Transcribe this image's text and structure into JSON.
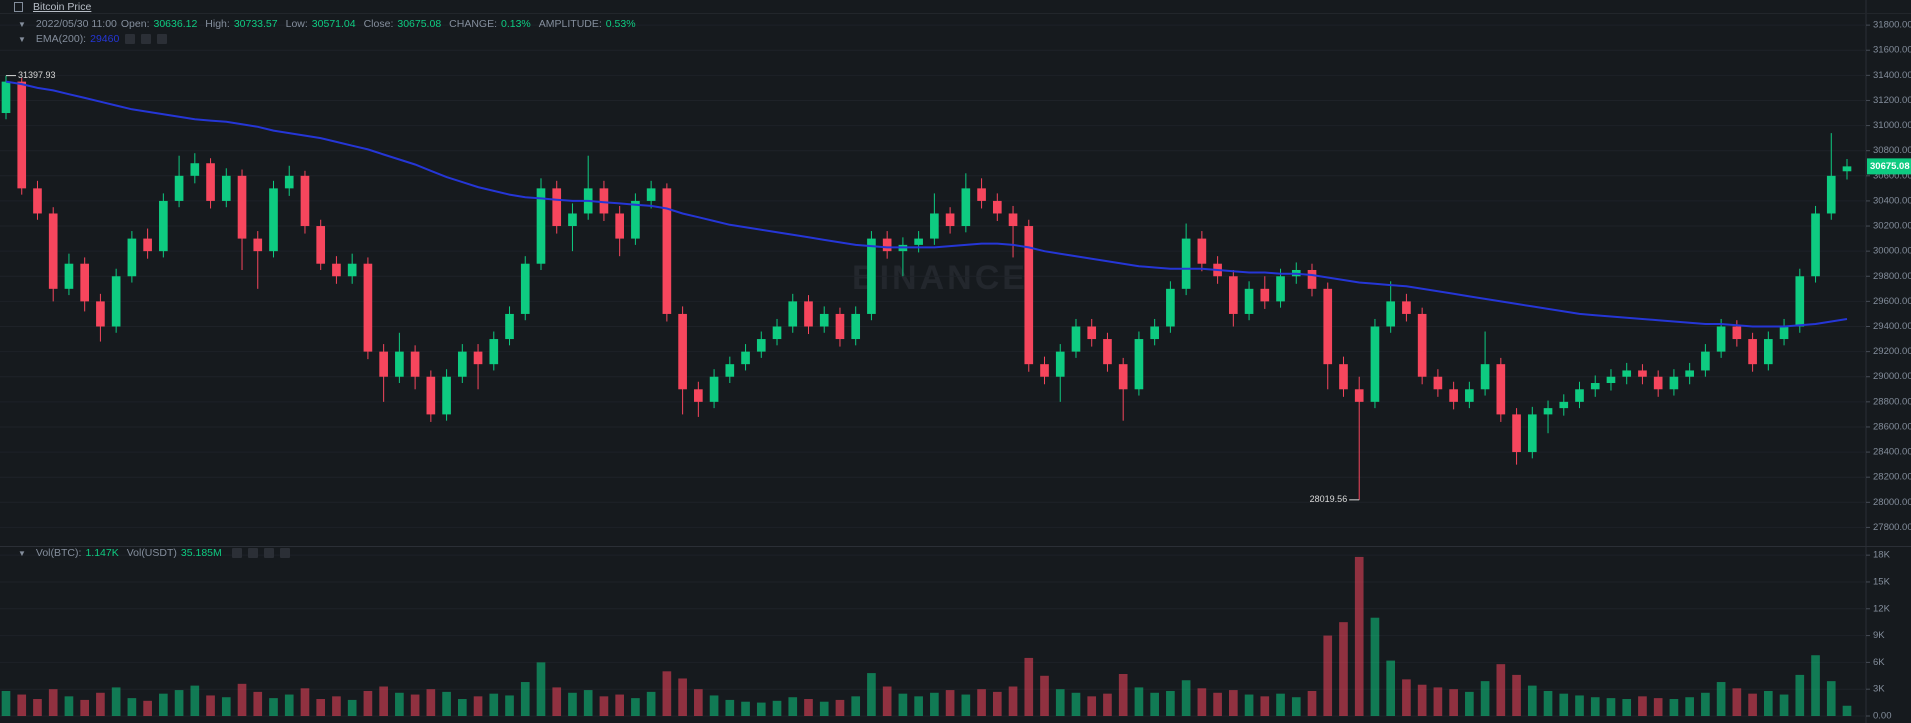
{
  "header": {
    "title": "Bitcoin Price",
    "datetime": "2022/05/30 11:00",
    "labels": {
      "open": "Open:",
      "high": "High:",
      "low": "Low:",
      "close": "Close:",
      "change": "CHANGE:",
      "amplitude": "AMPLITUDE:"
    },
    "change": "0.13%",
    "amplitude": "0.53%"
  },
  "chart_data": {
    "type": "candlestick",
    "watermark": "BINANCE",
    "up_color": "#0ecb81",
    "down_color": "#f6465d",
    "grid": true,
    "ylim": [
      27660,
      32000
    ],
    "yticks": [
      {
        "value": 27800,
        "label": "27800.00"
      },
      {
        "value": 28000,
        "label": "28000.00"
      },
      {
        "value": 28200,
        "label": "28200.00"
      },
      {
        "value": 28400,
        "label": "28400.00"
      },
      {
        "value": 28600,
        "label": "28600.00"
      },
      {
        "value": 28800,
        "label": "28800.00"
      },
      {
        "value": 29000,
        "label": "29000.00"
      },
      {
        "value": 29200,
        "label": "29200.00"
      },
      {
        "value": 29400,
        "label": "29400.00"
      },
      {
        "value": 29600,
        "label": "29600.00"
      },
      {
        "value": 29800,
        "label": "29800.00"
      },
      {
        "value": 30000,
        "label": "30000.00"
      },
      {
        "value": 30200,
        "label": "30200.00"
      },
      {
        "value": 30400,
        "label": "30400.00"
      },
      {
        "value": 30600,
        "label": "30600.00"
      },
      {
        "value": 30800,
        "label": "30800.00"
      },
      {
        "value": 31000,
        "label": "31000.00"
      },
      {
        "value": 31200,
        "label": "31200.00"
      },
      {
        "value": 31400,
        "label": "31400.00"
      },
      {
        "value": 31600,
        "label": "31600.00"
      },
      {
        "value": 31800,
        "label": "31800.00"
      }
    ],
    "y2lim": [
      0,
      18800
    ],
    "y2ticks": [
      {
        "value": 0,
        "label": "0.00"
      },
      {
        "value": 3000,
        "label": "3K"
      },
      {
        "value": 6000,
        "label": "6K"
      },
      {
        "value": 9000,
        "label": "9K"
      },
      {
        "value": 12000,
        "label": "12K"
      },
      {
        "value": 15000,
        "label": "15K"
      },
      {
        "value": 18000,
        "label": "18K"
      }
    ],
    "candles": [
      {
        "open": 31100,
        "high": 31397.93,
        "low": 31050,
        "close": 31350
      },
      {
        "open": 31350,
        "high": 31380,
        "low": 30450,
        "close": 30500
      },
      {
        "open": 30500,
        "high": 30560,
        "low": 30250,
        "close": 30300
      },
      {
        "open": 30300,
        "high": 30350,
        "low": 29600,
        "close": 29700
      },
      {
        "open": 29700,
        "high": 29980,
        "low": 29650,
        "close": 29900
      },
      {
        "open": 29900,
        "high": 29950,
        "low": 29520,
        "close": 29600
      },
      {
        "open": 29600,
        "high": 29660,
        "low": 29280,
        "close": 29400
      },
      {
        "open": 29400,
        "high": 29860,
        "low": 29350,
        "close": 29800
      },
      {
        "open": 29800,
        "high": 30160,
        "low": 29750,
        "close": 30100
      },
      {
        "open": 30100,
        "high": 30180,
        "low": 29940,
        "close": 30000
      },
      {
        "open": 30000,
        "high": 30460,
        "low": 29950,
        "close": 30400
      },
      {
        "open": 30400,
        "high": 30760,
        "low": 30350,
        "close": 30600
      },
      {
        "open": 30600,
        "high": 30780,
        "low": 30540,
        "close": 30700
      },
      {
        "open": 30700,
        "high": 30740,
        "low": 30340,
        "close": 30400
      },
      {
        "open": 30400,
        "high": 30660,
        "low": 30350,
        "close": 30600
      },
      {
        "open": 30600,
        "high": 30650,
        "low": 29850,
        "close": 30100
      },
      {
        "open": 30100,
        "high": 30160,
        "low": 29700,
        "close": 30000
      },
      {
        "open": 30000,
        "high": 30560,
        "low": 29950,
        "close": 30500
      },
      {
        "open": 30500,
        "high": 30680,
        "low": 30440,
        "close": 30600
      },
      {
        "open": 30600,
        "high": 30640,
        "low": 30140,
        "close": 30200
      },
      {
        "open": 30200,
        "high": 30250,
        "low": 29850,
        "close": 29900
      },
      {
        "open": 29900,
        "high": 29960,
        "low": 29740,
        "close": 29800
      },
      {
        "open": 29800,
        "high": 29980,
        "low": 29740,
        "close": 29900
      },
      {
        "open": 29900,
        "high": 29950,
        "low": 29140,
        "close": 29200
      },
      {
        "open": 29200,
        "high": 29260,
        "low": 28800,
        "close": 29000
      },
      {
        "open": 29000,
        "high": 29350,
        "low": 28950,
        "close": 29200
      },
      {
        "open": 29200,
        "high": 29250,
        "low": 28900,
        "close": 29000
      },
      {
        "open": 29000,
        "high": 29050,
        "low": 28640,
        "close": 28700
      },
      {
        "open": 28700,
        "high": 29060,
        "low": 28650,
        "close": 29000
      },
      {
        "open": 29000,
        "high": 29260,
        "low": 28950,
        "close": 29200
      },
      {
        "open": 29200,
        "high": 29260,
        "low": 28900,
        "close": 29100
      },
      {
        "open": 29100,
        "high": 29360,
        "low": 29050,
        "close": 29300
      },
      {
        "open": 29300,
        "high": 29560,
        "low": 29250,
        "close": 29500
      },
      {
        "open": 29500,
        "high": 29960,
        "low": 29450,
        "close": 29900
      },
      {
        "open": 29900,
        "high": 30580,
        "low": 29850,
        "close": 30500
      },
      {
        "open": 30500,
        "high": 30560,
        "low": 30140,
        "close": 30200
      },
      {
        "open": 30200,
        "high": 30380,
        "low": 30000,
        "close": 30300
      },
      {
        "open": 30300,
        "high": 30760,
        "low": 30250,
        "close": 30500
      },
      {
        "open": 30500,
        "high": 30560,
        "low": 30240,
        "close": 30300
      },
      {
        "open": 30300,
        "high": 30360,
        "low": 29960,
        "close": 30100
      },
      {
        "open": 30100,
        "high": 30460,
        "low": 30050,
        "close": 30400
      },
      {
        "open": 30400,
        "high": 30560,
        "low": 30340,
        "close": 30500
      },
      {
        "open": 30500,
        "high": 30540,
        "low": 29440,
        "close": 29500
      },
      {
        "open": 29500,
        "high": 29560,
        "low": 28700,
        "close": 28900
      },
      {
        "open": 28900,
        "high": 28960,
        "low": 28680,
        "close": 28800
      },
      {
        "open": 28800,
        "high": 29060,
        "low": 28750,
        "close": 29000
      },
      {
        "open": 29000,
        "high": 29160,
        "low": 28950,
        "close": 29100
      },
      {
        "open": 29100,
        "high": 29260,
        "low": 29050,
        "close": 29200
      },
      {
        "open": 29200,
        "high": 29360,
        "low": 29150,
        "close": 29300
      },
      {
        "open": 29300,
        "high": 29460,
        "low": 29250,
        "close": 29400
      },
      {
        "open": 29400,
        "high": 29660,
        "low": 29350,
        "close": 29600
      },
      {
        "open": 29600,
        "high": 29650,
        "low": 29340,
        "close": 29400
      },
      {
        "open": 29400,
        "high": 29560,
        "low": 29350,
        "close": 29500
      },
      {
        "open": 29500,
        "high": 29550,
        "low": 29240,
        "close": 29300
      },
      {
        "open": 29300,
        "high": 29560,
        "low": 29250,
        "close": 29500
      },
      {
        "open": 29500,
        "high": 30160,
        "low": 29450,
        "close": 30100
      },
      {
        "open": 30100,
        "high": 30160,
        "low": 29940,
        "close": 30000
      },
      {
        "open": 30000,
        "high": 30110,
        "low": 29800,
        "close": 30050
      },
      {
        "open": 30050,
        "high": 30160,
        "low": 29990,
        "close": 30100
      },
      {
        "open": 30100,
        "high": 30460,
        "low": 30050,
        "close": 30300
      },
      {
        "open": 30300,
        "high": 30350,
        "low": 30140,
        "close": 30200
      },
      {
        "open": 30200,
        "high": 30620,
        "low": 30150,
        "close": 30500
      },
      {
        "open": 30500,
        "high": 30580,
        "low": 30340,
        "close": 30400
      },
      {
        "open": 30400,
        "high": 30460,
        "low": 30240,
        "close": 30300
      },
      {
        "open": 30300,
        "high": 30360,
        "low": 29950,
        "close": 30200
      },
      {
        "open": 30200,
        "high": 30250,
        "low": 29040,
        "close": 29100
      },
      {
        "open": 29100,
        "high": 29160,
        "low": 28940,
        "close": 29000
      },
      {
        "open": 29000,
        "high": 29260,
        "low": 28800,
        "close": 29200
      },
      {
        "open": 29200,
        "high": 29460,
        "low": 29150,
        "close": 29400
      },
      {
        "open": 29400,
        "high": 29460,
        "low": 29240,
        "close": 29300
      },
      {
        "open": 29300,
        "high": 29350,
        "low": 29040,
        "close": 29100
      },
      {
        "open": 29100,
        "high": 29150,
        "low": 28650,
        "close": 28900
      },
      {
        "open": 28900,
        "high": 29360,
        "low": 28850,
        "close": 29300
      },
      {
        "open": 29300,
        "high": 29460,
        "low": 29250,
        "close": 29400
      },
      {
        "open": 29400,
        "high": 29760,
        "low": 29350,
        "close": 29700
      },
      {
        "open": 29700,
        "high": 30220,
        "low": 29650,
        "close": 30100
      },
      {
        "open": 30100,
        "high": 30160,
        "low": 29840,
        "close": 29900
      },
      {
        "open": 29900,
        "high": 29960,
        "low": 29740,
        "close": 29800
      },
      {
        "open": 29800,
        "high": 29850,
        "low": 29400,
        "close": 29500
      },
      {
        "open": 29500,
        "high": 29760,
        "low": 29450,
        "close": 29700
      },
      {
        "open": 29700,
        "high": 29800,
        "low": 29540,
        "close": 29600
      },
      {
        "open": 29600,
        "high": 29860,
        "low": 29550,
        "close": 29800
      },
      {
        "open": 29800,
        "high": 29910,
        "low": 29740,
        "close": 29850
      },
      {
        "open": 29850,
        "high": 29900,
        "low": 29640,
        "close": 29700
      },
      {
        "open": 29700,
        "high": 29750,
        "low": 28900,
        "close": 29100
      },
      {
        "open": 29100,
        "high": 29160,
        "low": 28840,
        "close": 28900
      },
      {
        "open": 28900,
        "high": 29000,
        "low": 28019.56,
        "close": 28800
      },
      {
        "open": 28800,
        "high": 29460,
        "low": 28750,
        "close": 29400
      },
      {
        "open": 29400,
        "high": 29760,
        "low": 29350,
        "close": 29600
      },
      {
        "open": 29600,
        "high": 29660,
        "low": 29440,
        "close": 29500
      },
      {
        "open": 29500,
        "high": 29550,
        "low": 28940,
        "close": 29000
      },
      {
        "open": 29000,
        "high": 29060,
        "low": 28840,
        "close": 28900
      },
      {
        "open": 28900,
        "high": 28960,
        "low": 28740,
        "close": 28800
      },
      {
        "open": 28800,
        "high": 28960,
        "low": 28750,
        "close": 28900
      },
      {
        "open": 28900,
        "high": 29360,
        "low": 28850,
        "close": 29100
      },
      {
        "open": 29100,
        "high": 29150,
        "low": 28640,
        "close": 28700
      },
      {
        "open": 28700,
        "high": 28750,
        "low": 28300,
        "close": 28400
      },
      {
        "open": 28400,
        "high": 28760,
        "low": 28350,
        "close": 28700
      },
      {
        "open": 28700,
        "high": 28810,
        "low": 28550,
        "close": 28750
      },
      {
        "open": 28750,
        "high": 28860,
        "low": 28690,
        "close": 28800
      },
      {
        "open": 28800,
        "high": 28960,
        "low": 28750,
        "close": 28900
      },
      {
        "open": 28900,
        "high": 29010,
        "low": 28840,
        "close": 28950
      },
      {
        "open": 28950,
        "high": 29060,
        "low": 28890,
        "close": 29000
      },
      {
        "open": 29000,
        "high": 29110,
        "low": 28940,
        "close": 29050
      },
      {
        "open": 29050,
        "high": 29100,
        "low": 28940,
        "close": 29000
      },
      {
        "open": 29000,
        "high": 29050,
        "low": 28840,
        "close": 28900
      },
      {
        "open": 28900,
        "high": 29060,
        "low": 28850,
        "close": 29000
      },
      {
        "open": 29000,
        "high": 29110,
        "low": 28940,
        "close": 29050
      },
      {
        "open": 29050,
        "high": 29260,
        "low": 29000,
        "close": 29200
      },
      {
        "open": 29200,
        "high": 29460,
        "low": 29150,
        "close": 29400
      },
      {
        "open": 29400,
        "high": 29450,
        "low": 29240,
        "close": 29300
      },
      {
        "open": 29300,
        "high": 29350,
        "low": 29040,
        "close": 29100
      },
      {
        "open": 29100,
        "high": 29360,
        "low": 29050,
        "close": 29300
      },
      {
        "open": 29300,
        "high": 29460,
        "low": 29250,
        "close": 29400
      },
      {
        "open": 29400,
        "high": 29860,
        "low": 29350,
        "close": 29800
      },
      {
        "open": 29800,
        "high": 30360,
        "low": 29750,
        "close": 30300
      },
      {
        "open": 30300,
        "high": 30940,
        "low": 30250,
        "close": 30600
      },
      {
        "open": 30636.12,
        "high": 30733.57,
        "low": 30571.04,
        "close": 30675.08
      }
    ],
    "ema": {
      "name": "EMA(200):",
      "color": "#2536d6",
      "values": [
        31350,
        31330,
        31300,
        31280,
        31250,
        31220,
        31190,
        31160,
        31130,
        31110,
        31090,
        31070,
        31050,
        31040,
        31030,
        31010,
        30990,
        30960,
        30940,
        30920,
        30900,
        30870,
        30840,
        30810,
        30770,
        30730,
        30690,
        30640,
        30590,
        30550,
        30510,
        30480,
        30450,
        30430,
        30420,
        30410,
        30400,
        30400,
        30390,
        30380,
        30370,
        30360,
        30340,
        30300,
        30270,
        30240,
        30210,
        30190,
        30170,
        30150,
        30130,
        30110,
        30090,
        30070,
        30050,
        30040,
        30030,
        30030,
        30030,
        30030,
        30040,
        30050,
        30060,
        30060,
        30050,
        30030,
        30000,
        29980,
        29960,
        29940,
        29920,
        29900,
        29880,
        29870,
        29860,
        29860,
        29860,
        29850,
        29840,
        29830,
        29830,
        29820,
        29820,
        29810,
        29790,
        29770,
        29750,
        29740,
        29730,
        29720,
        29700,
        29680,
        29660,
        29640,
        29620,
        29600,
        29580,
        29560,
        29540,
        29520,
        29500,
        29490,
        29480,
        29470,
        29460,
        29450,
        29440,
        29430,
        29420,
        29420,
        29410,
        29400,
        29400,
        29400,
        29410,
        29420,
        29440,
        29460
      ]
    },
    "volume": {
      "name": "Vol(BTC):",
      "last_value_label": "1.147K",
      "usdt_name": "Vol(USDT)",
      "usdt_value": "35.185M",
      "values": [
        2800,
        2400,
        1900,
        3000,
        2200,
        1800,
        2600,
        3200,
        2000,
        1700,
        2500,
        2900,
        3400,
        2300,
        2100,
        3600,
        2700,
        2000,
        2400,
        3100,
        1900,
        2200,
        1800,
        2800,
        3300,
        2600,
        2400,
        3000,
        2700,
        1900,
        2200,
        2500,
        2300,
        3800,
        6000,
        3200,
        2600,
        2900,
        2200,
        2400,
        2000,
        2700,
        5000,
        4200,
        3000,
        2300,
        1800,
        1600,
        1500,
        1700,
        2100,
        1900,
        1600,
        1800,
        2200,
        4800,
        3300,
        2500,
        2200,
        2600,
        2900,
        2400,
        3000,
        2700,
        3300,
        6500,
        4500,
        3000,
        2600,
        2200,
        2500,
        4700,
        3200,
        2600,
        2800,
        4000,
        3100,
        2600,
        2900,
        2400,
        2200,
        2500,
        2100,
        2800,
        9000,
        10500,
        17800,
        11000,
        6200,
        4100,
        3500,
        3200,
        3000,
        2700,
        3900,
        5800,
        4600,
        3400,
        2800,
        2500,
        2300,
        2100,
        2000,
        1900,
        2200,
        2000,
        1900,
        2100,
        2600,
        3800,
        3100,
        2500,
        2800,
        2400,
        4600,
        6800,
        3900,
        1147
      ]
    }
  }
}
